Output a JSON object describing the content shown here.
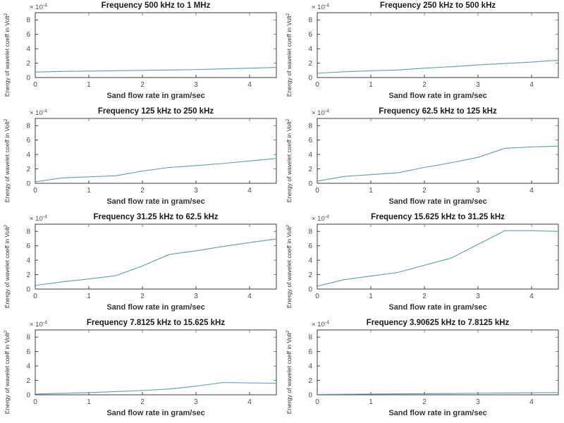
{
  "figure": {
    "background": "#ffffff",
    "line_color": "#55a0ae",
    "axis_color": "#3c3c3c",
    "tick_label_color": "#4a4a4a",
    "title_color": "#1a1a1a",
    "label_color": "#333333"
  },
  "chart_data": [
    {
      "type": "line",
      "title": "Frequency 500 kHz to 1 MHz",
      "xlabel": "Sand flow rate in gram/sec",
      "ylabel_base": "Energy of wavelet coeff in Volt",
      "ylabel_sup": "2",
      "exp_prefix": "× 10",
      "exp_sup": "-4",
      "xlim": [
        0,
        4.5
      ],
      "ylim": [
        0,
        9
      ],
      "xticks": [
        0,
        1,
        2,
        3,
        4
      ],
      "yticks": [
        0,
        2,
        4,
        6,
        8
      ],
      "x": [
        0,
        0.5,
        1,
        1.5,
        2,
        2.5,
        3,
        3.5,
        4,
        4.5
      ],
      "y": [
        0.75,
        0.85,
        0.9,
        0.95,
        1.0,
        1.05,
        1.1,
        1.2,
        1.3,
        1.4
      ],
      "legend": null,
      "grid": false
    },
    {
      "type": "line",
      "title": "Frequency 250 kHz to 500 kHz",
      "xlabel": "Sand flow rate in gram/sec",
      "ylabel_base": "Energy of wavelet coeff in Volt",
      "ylabel_sup": "2",
      "exp_prefix": "× 10",
      "exp_sup": "-4",
      "xlim": [
        0,
        4.5
      ],
      "ylim": [
        0,
        9
      ],
      "xticks": [
        0,
        1,
        2,
        3,
        4
      ],
      "yticks": [
        0,
        2,
        4,
        6,
        8
      ],
      "x": [
        0,
        0.5,
        1,
        1.5,
        2,
        2.5,
        3,
        3.5,
        4,
        4.5
      ],
      "y": [
        0.6,
        0.8,
        0.95,
        1.05,
        1.3,
        1.5,
        1.75,
        1.95,
        2.15,
        2.4
      ],
      "legend": null,
      "grid": false
    },
    {
      "type": "line",
      "title": "Frequency 125 kHz to 250 kHz",
      "xlabel": "Sand flow rate in gram/sec",
      "ylabel_base": "Energy of wavelet coeff in Volt",
      "ylabel_sup": "2",
      "exp_prefix": "× 10",
      "exp_sup": "-4",
      "xlim": [
        0,
        4.5
      ],
      "ylim": [
        0,
        9
      ],
      "xticks": [
        0,
        1,
        2,
        3,
        4
      ],
      "yticks": [
        0,
        2,
        4,
        6,
        8
      ],
      "x": [
        0,
        0.5,
        1,
        1.5,
        2,
        2.5,
        3,
        3.5,
        4,
        4.5
      ],
      "y": [
        0.2,
        0.75,
        0.9,
        1.05,
        1.7,
        2.2,
        2.45,
        2.75,
        3.1,
        3.45
      ],
      "legend": null,
      "grid": false
    },
    {
      "type": "line",
      "title": "Frequency 62.5 kHz to 125 kHz",
      "xlabel": "Sand flow rate in gram/sec",
      "ylabel_base": "Energy of wavelet coeff in Volt",
      "ylabel_sup": "2",
      "exp_prefix": "× 10",
      "exp_sup": "-4",
      "xlim": [
        0,
        4.5
      ],
      "ylim": [
        0,
        9
      ],
      "xticks": [
        0,
        1,
        2,
        3,
        4
      ],
      "yticks": [
        0,
        2,
        4,
        6,
        8
      ],
      "x": [
        0,
        0.5,
        1,
        1.5,
        2,
        2.5,
        3,
        3.5,
        4,
        4.5
      ],
      "y": [
        0.3,
        0.95,
        1.2,
        1.45,
        2.2,
        2.85,
        3.6,
        4.85,
        5.05,
        5.15
      ],
      "legend": null,
      "grid": false
    },
    {
      "type": "line",
      "title": "Frequency 31.25 kHz to 62.5 kHz",
      "xlabel": "Sand flow rate in gram/sec",
      "ylabel_base": "Energy of wavelet coeff in Volt",
      "ylabel_sup": "2",
      "exp_prefix": "× 10",
      "exp_sup": "-4",
      "xlim": [
        0,
        4.5
      ],
      "ylim": [
        0,
        9
      ],
      "xticks": [
        0,
        1,
        2,
        3,
        4
      ],
      "yticks": [
        0,
        2,
        4,
        6,
        8
      ],
      "x": [
        0,
        0.5,
        1,
        1.5,
        2,
        2.5,
        3,
        3.5,
        4,
        4.5
      ],
      "y": [
        0.5,
        1.0,
        1.4,
        1.85,
        3.2,
        4.8,
        5.3,
        5.9,
        6.45,
        6.95
      ],
      "legend": null,
      "grid": false
    },
    {
      "type": "line",
      "title": "Frequency 15.625 kHz to 31.25 kHz",
      "xlabel": "Sand flow rate in gram/sec",
      "ylabel_base": "Energy of wavelet coeff in Volt",
      "ylabel_sup": "2",
      "exp_prefix": "× 10",
      "exp_sup": "-4",
      "xlim": [
        0,
        4.5
      ],
      "ylim": [
        0,
        9
      ],
      "xticks": [
        0,
        1,
        2,
        3,
        4
      ],
      "yticks": [
        0,
        2,
        4,
        6,
        8
      ],
      "x": [
        0,
        0.5,
        1,
        1.5,
        2,
        2.5,
        3,
        3.5,
        4,
        4.5
      ],
      "y": [
        0.4,
        1.3,
        1.8,
        2.3,
        3.3,
        4.3,
        6.2,
        8.1,
        8.1,
        8.0
      ],
      "legend": null,
      "grid": false
    },
    {
      "type": "line",
      "title": "Frequency 7.8125 kHz to 15.625 kHz",
      "xlabel": "Sand flow rate in gram/sec",
      "ylabel_base": "Energy of wavelet coeff in Volt",
      "ylabel_sup": "2",
      "exp_prefix": "× 10",
      "exp_sup": "-4",
      "xlim": [
        0,
        4.5
      ],
      "ylim": [
        0,
        9
      ],
      "xticks": [
        0,
        1,
        2,
        3,
        4
      ],
      "yticks": [
        0,
        2,
        4,
        6,
        8
      ],
      "x": [
        0,
        0.5,
        1,
        1.5,
        2,
        2.5,
        3,
        3.5,
        4,
        4.5
      ],
      "y": [
        0.1,
        0.2,
        0.3,
        0.45,
        0.6,
        0.8,
        1.2,
        1.7,
        1.65,
        1.6
      ],
      "legend": null,
      "grid": false
    },
    {
      "type": "line",
      "title": "Frequency 3.90625 kHz to 7.8125 kHz",
      "xlabel": "Sand flow rate in gram/sec",
      "ylabel_base": "Energy of wavelet coeff in Volt",
      "ylabel_sup": "2",
      "exp_prefix": "× 10",
      "exp_sup": "-4",
      "xlim": [
        0,
        4.5
      ],
      "ylim": [
        0,
        9
      ],
      "xticks": [
        0,
        1,
        2,
        3,
        4
      ],
      "yticks": [
        0,
        2,
        4,
        6,
        8
      ],
      "x": [
        0,
        0.5,
        1,
        1.5,
        2,
        2.5,
        3,
        3.5,
        4,
        4.5
      ],
      "y": [
        0.05,
        0.08,
        0.1,
        0.13,
        0.15,
        0.18,
        0.22,
        0.25,
        0.28,
        0.3
      ],
      "legend": null,
      "grid": false
    }
  ]
}
